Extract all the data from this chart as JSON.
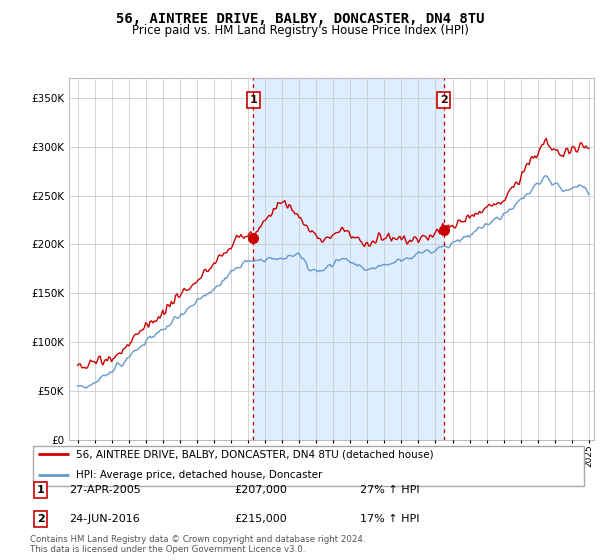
{
  "title": "56, AINTREE DRIVE, BALBY, DONCASTER, DN4 8TU",
  "subtitle": "Price paid vs. HM Land Registry's House Price Index (HPI)",
  "title_fontsize": 10,
  "subtitle_fontsize": 8.5,
  "ylim": [
    0,
    370000
  ],
  "yticks": [
    0,
    50000,
    100000,
    150000,
    200000,
    250000,
    300000,
    350000
  ],
  "line1_color": "#cc0000",
  "line2_color": "#6699cc",
  "shade_color": "#ddeeff",
  "legend_label1": "56, AINTREE DRIVE, BALBY, DONCASTER, DN4 8TU (detached house)",
  "legend_label2": "HPI: Average price, detached house, Doncaster",
  "event1_x": 2005.32,
  "event1_label": "1",
  "event1_date": "27-APR-2005",
  "event1_price": "£207,000",
  "event1_hpi": "27% ↑ HPI",
  "event1_price_val": 207000,
  "event2_x": 2016.48,
  "event2_label": "2",
  "event2_date": "24-JUN-2016",
  "event2_price": "£215,000",
  "event2_hpi": "17% ↑ HPI",
  "event2_price_val": 215000,
  "footnote": "Contains HM Land Registry data © Crown copyright and database right 2024.\nThis data is licensed under the Open Government Licence v3.0.",
  "grid_color": "#cccccc",
  "xmin": 1995,
  "xmax": 2025
}
